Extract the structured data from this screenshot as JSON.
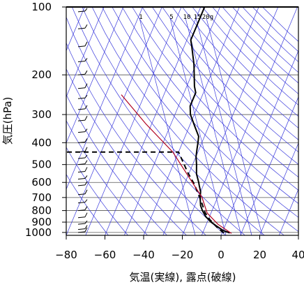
{
  "chart_data": {
    "type": "line",
    "xlabel": "気温(実線), 露点(破線)",
    "ylabel": "気圧(hPa)",
    "xlim": [
      -80,
      40
    ],
    "ylim": [
      1030,
      100
    ],
    "y_scale": "log",
    "x_ticks": [
      "−80",
      "−60",
      "−40",
      "−20",
      "0",
      "20",
      "40"
    ],
    "x_tick_values": [
      -80,
      -60,
      -40,
      -20,
      0,
      20,
      40
    ],
    "y_ticks": [
      "100",
      "200",
      "300",
      "400",
      "500",
      "600",
      "700",
      "800",
      "900",
      "1000"
    ],
    "y_tick_values": [
      100,
      200,
      300,
      400,
      500,
      600,
      700,
      800,
      900,
      1000
    ],
    "mixing_ratio_labels": [
      "1",
      "5",
      "10",
      "15",
      "20g"
    ],
    "mixing_ratio_values": [
      1,
      5,
      10,
      15,
      20
    ],
    "series": [
      {
        "role": "temperature",
        "style": "solid",
        "color": "#000000",
        "points": [
          [
            4,
            1005
          ],
          [
            0,
            980
          ],
          [
            -4,
            940
          ],
          [
            -8,
            900
          ],
          [
            -12,
            850
          ],
          [
            -15,
            800
          ],
          [
            -17,
            760
          ],
          [
            -19,
            700
          ],
          [
            -20,
            660
          ],
          [
            -22,
            620
          ],
          [
            -23,
            600
          ],
          [
            -26,
            550
          ],
          [
            -28,
            500
          ],
          [
            -30,
            460
          ],
          [
            -31,
            430
          ],
          [
            -32,
            400
          ],
          [
            -33,
            375
          ],
          [
            -37,
            340
          ],
          [
            -42,
            300
          ],
          [
            -44,
            275
          ],
          [
            -44,
            240
          ],
          [
            -46,
            225
          ],
          [
            -51,
            180
          ],
          [
            -56,
            150
          ],
          [
            -58,
            140
          ],
          [
            -58,
            120
          ],
          [
            -58,
            100
          ]
        ]
      },
      {
        "role": "dewpoint",
        "style": "dashed",
        "color": "#000000",
        "points": [
          [
            1,
            1005
          ],
          [
            -3,
            960
          ],
          [
            -9,
            880
          ],
          [
            -13,
            820
          ],
          [
            -18,
            720
          ],
          [
            -25,
            610
          ],
          [
            -31,
            540
          ],
          [
            -40,
            440
          ],
          [
            -82,
            440
          ]
        ]
      },
      {
        "role": "lifted-parcel",
        "style": "solid",
        "color": "#b00020",
        "points": [
          [
            5,
            1010
          ],
          [
            -4,
            920
          ],
          [
            -12,
            820
          ],
          [
            -18,
            700
          ],
          [
            -30,
            560
          ],
          [
            -43,
            440
          ],
          [
            -63,
            330
          ],
          [
            -82,
            245
          ]
        ]
      }
    ],
    "wind_barb_column": "left"
  }
}
